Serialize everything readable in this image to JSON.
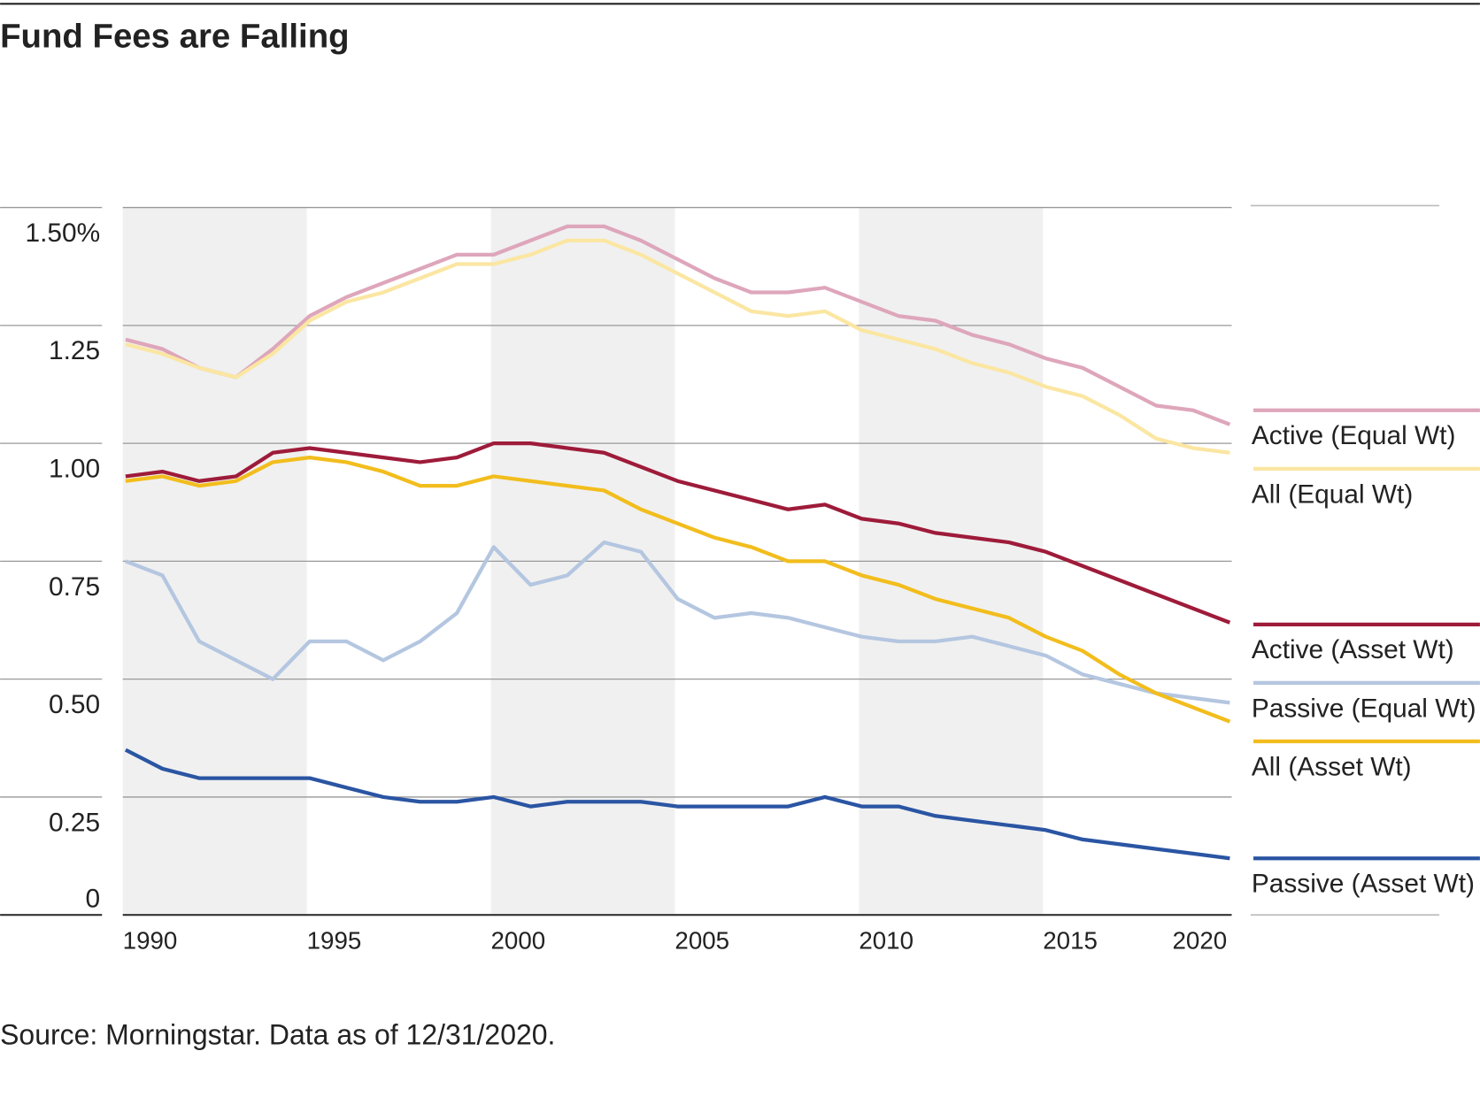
{
  "chart_data": {
    "type": "line",
    "title": "Fund Fees are Falling",
    "source": "Source: Morningstar. Data as of 12/31/2020.",
    "x": [
      1990,
      1991,
      1992,
      1993,
      1994,
      1995,
      1996,
      1997,
      1998,
      1999,
      2000,
      2001,
      2002,
      2003,
      2004,
      2005,
      2006,
      2007,
      2008,
      2009,
      2010,
      2011,
      2012,
      2013,
      2014,
      2015,
      2016,
      2017,
      2018,
      2019,
      2020
    ],
    "xlim": [
      1990,
      2020
    ],
    "xticks": [
      1990,
      1995,
      2000,
      2005,
      2010,
      2015,
      2020
    ],
    "ylim": [
      0,
      1.5
    ],
    "yticks": [
      0,
      0.25,
      {
        "value": 0.5,
        "label": "0.50"
      },
      0.75,
      {
        "value": 1,
        "label": "1.00"
      },
      1.25,
      {
        "value": 1.5,
        "label": "1.50%"
      }
    ],
    "grid": true,
    "series": [
      {
        "name": "Active (Equal Wt)",
        "color": "#dea6bb",
        "values": [
          1.22,
          1.2,
          1.16,
          1.14,
          1.2,
          1.27,
          1.31,
          1.34,
          1.37,
          1.4,
          1.4,
          1.43,
          1.46,
          1.46,
          1.43,
          1.39,
          1.35,
          1.32,
          1.32,
          1.33,
          1.3,
          1.27,
          1.26,
          1.23,
          1.21,
          1.18,
          1.16,
          1.12,
          1.08,
          1.07,
          1.04
        ]
      },
      {
        "name": "All (Equal Wt)",
        "color": "#fbe6a2",
        "values": [
          1.21,
          1.19,
          1.16,
          1.14,
          1.19,
          1.26,
          1.3,
          1.32,
          1.35,
          1.38,
          1.38,
          1.4,
          1.43,
          1.43,
          1.4,
          1.36,
          1.32,
          1.28,
          1.27,
          1.28,
          1.24,
          1.22,
          1.2,
          1.17,
          1.15,
          1.12,
          1.1,
          1.06,
          1.01,
          0.99,
          0.98
        ]
      },
      {
        "name": "Active (Asset Wt)",
        "color": "#9e1b3a",
        "values": [
          0.93,
          0.94,
          0.92,
          0.93,
          0.98,
          0.99,
          0.98,
          0.97,
          0.96,
          0.97,
          1.0,
          1.0,
          0.99,
          0.98,
          0.95,
          0.92,
          0.9,
          0.88,
          0.86,
          0.87,
          0.84,
          0.83,
          0.81,
          0.8,
          0.79,
          0.77,
          0.74,
          0.71,
          0.68,
          0.65,
          0.62
        ]
      },
      {
        "name": "Passive (Equal Wt)",
        "color": "#b4c6e0",
        "values": [
          0.75,
          0.72,
          0.58,
          0.54,
          0.5,
          0.58,
          0.58,
          0.54,
          0.58,
          0.64,
          0.78,
          0.7,
          0.72,
          0.79,
          0.77,
          0.67,
          0.63,
          0.64,
          0.63,
          0.61,
          0.59,
          0.58,
          0.58,
          0.59,
          0.57,
          0.55,
          0.51,
          0.49,
          0.47,
          0.46,
          0.45
        ]
      },
      {
        "name": "All (Asset Wt)",
        "color": "#f2bd1d",
        "values": [
          0.92,
          0.93,
          0.91,
          0.92,
          0.96,
          0.97,
          0.96,
          0.94,
          0.91,
          0.91,
          0.93,
          0.92,
          0.91,
          0.9,
          0.86,
          0.83,
          0.8,
          0.78,
          0.75,
          0.75,
          0.72,
          0.7,
          0.67,
          0.65,
          0.63,
          0.59,
          0.56,
          0.51,
          0.47,
          0.44,
          0.41
        ]
      },
      {
        "name": "Passive (Asset Wt)",
        "color": "#2a55a3",
        "values": [
          0.35,
          0.31,
          0.29,
          0.29,
          0.29,
          0.29,
          0.27,
          0.25,
          0.24,
          0.24,
          0.25,
          0.23,
          0.24,
          0.24,
          0.24,
          0.23,
          0.23,
          0.23,
          0.23,
          0.25,
          0.23,
          0.23,
          0.21,
          0.2,
          0.19,
          0.18,
          0.16,
          0.15,
          0.14,
          0.13,
          0.12
        ]
      }
    ]
  }
}
